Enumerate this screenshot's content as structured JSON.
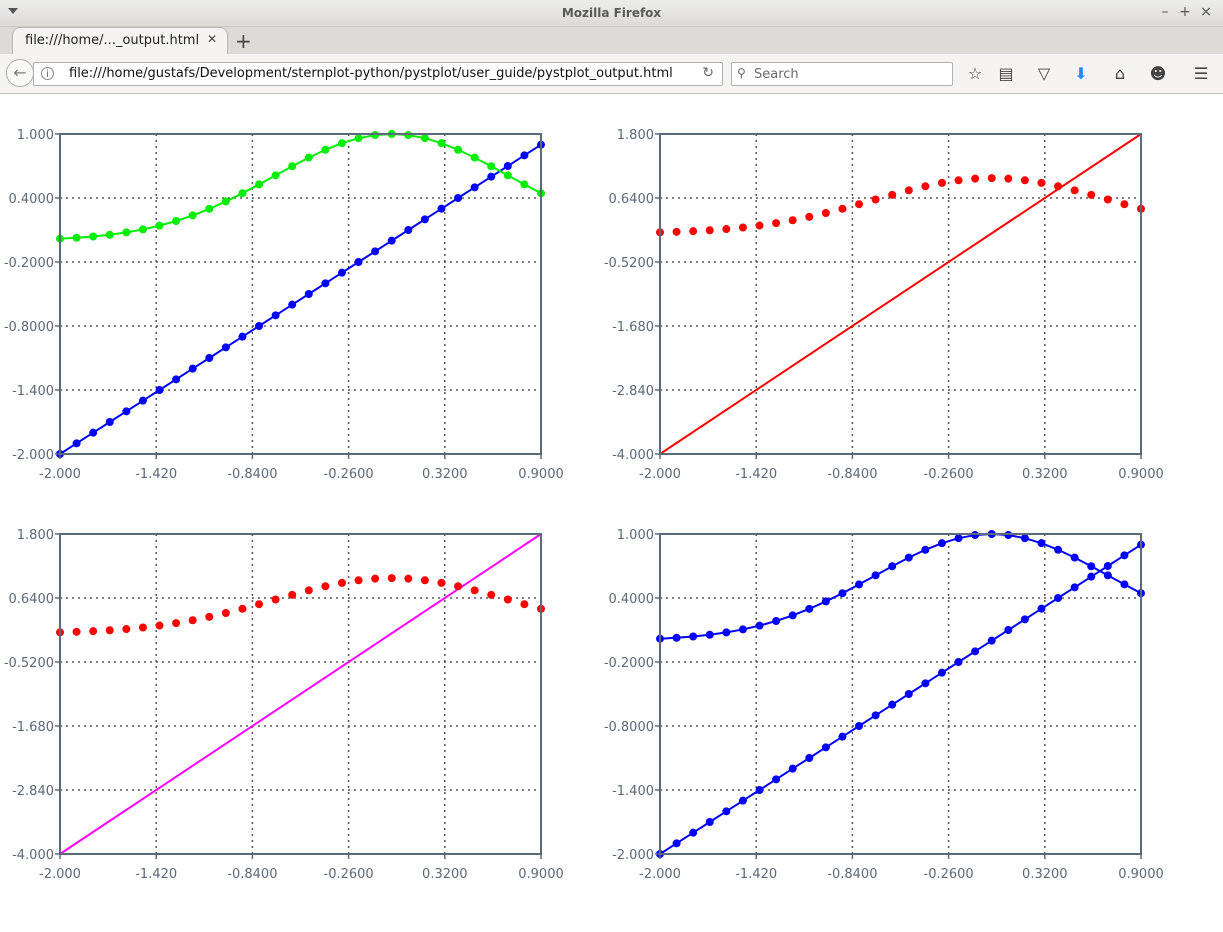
{
  "window": {
    "title": "Mozilla Firefox"
  },
  "tab": {
    "title": "file:///home/..._output.html"
  },
  "navbar": {
    "url": "file:///home/gustafs/Development/sternplot-python/pystplot/user_guide/pystplot_output.html",
    "search_placeholder": "Search"
  },
  "colors": {
    "axis": "#5a6a7a",
    "grid": "#555555",
    "blue": "#0000ff",
    "green": "#00ee00",
    "red": "#ff0000",
    "magenta": "#ff00ff"
  },
  "chart_data": [
    {
      "type": "line",
      "xlim": [
        -2.0,
        0.9
      ],
      "ylim": [
        -2.0,
        1.0
      ],
      "xticks": [
        "-2.000",
        "-1.420",
        "-0.8400",
        "-0.2600",
        "0.3200",
        "0.9000"
      ],
      "yticks": [
        "-2.000",
        "-1.400",
        "-0.8000",
        "-0.2000",
        "0.4000",
        "1.000"
      ],
      "grid": true,
      "series": [
        {
          "function": "y = x",
          "color": "blue",
          "markers": true,
          "line": true,
          "x_start": -2.0,
          "x_end": 0.9,
          "n_points": 30
        },
        {
          "function": "y = exp(-x^2)",
          "color": "green",
          "markers": true,
          "line": true,
          "x_start": -2.0,
          "x_end": 0.9,
          "n_points": 30
        }
      ]
    },
    {
      "type": "line",
      "xlim": [
        -2.0,
        0.9
      ],
      "ylim": [
        -4.0,
        1.8
      ],
      "xticks": [
        "-2.000",
        "-1.420",
        "-0.8400",
        "-0.2600",
        "0.3200",
        "0.9000"
      ],
      "yticks": [
        "-4.000",
        "-2.840",
        "-1.680",
        "-0.5200",
        "0.6400",
        "1.800"
      ],
      "grid": true,
      "series": [
        {
          "function": "y = 2x",
          "color": "red",
          "markers": false,
          "line": true,
          "x_start": -2.0,
          "x_end": 0.9,
          "n_points": 2
        },
        {
          "function": "y = exp(-x^2)",
          "color": "red",
          "markers": true,
          "line": false,
          "x_start": -2.0,
          "x_end": 0.9,
          "n_points": 30
        }
      ]
    },
    {
      "type": "line",
      "xlim": [
        -2.0,
        0.9
      ],
      "ylim": [
        -4.0,
        1.8
      ],
      "xticks": [
        "-2.000",
        "-1.420",
        "-0.8400",
        "-0.2600",
        "0.3200",
        "0.9000"
      ],
      "yticks": [
        "-4.000",
        "-2.840",
        "-1.680",
        "-0.5200",
        "0.6400",
        "1.800"
      ],
      "grid": true,
      "series": [
        {
          "function": "y = 2x",
          "color": "magenta",
          "markers": false,
          "line": true,
          "x_start": -2.0,
          "x_end": 0.9,
          "n_points": 2
        },
        {
          "function": "y = exp(-x^2)",
          "color": "red",
          "markers": true,
          "line": false,
          "x_start": -2.0,
          "x_end": 0.9,
          "n_points": 30
        }
      ]
    },
    {
      "type": "line",
      "xlim": [
        -2.0,
        0.9
      ],
      "ylim": [
        -2.0,
        1.0
      ],
      "xticks": [
        "-2.000",
        "-1.420",
        "-0.8400",
        "-0.2600",
        "0.3200",
        "0.9000"
      ],
      "yticks": [
        "-2.000",
        "-1.400",
        "-0.8000",
        "-0.2000",
        "0.4000",
        "1.000"
      ],
      "grid": true,
      "series": [
        {
          "function": "y = x",
          "color": "blue",
          "markers": true,
          "line": true,
          "x_start": -2.0,
          "x_end": 0.9,
          "n_points": 30
        },
        {
          "function": "y = exp(-x^2)",
          "color": "blue",
          "markers": true,
          "line": true,
          "x_start": -2.0,
          "x_end": 0.9,
          "n_points": 30
        }
      ]
    }
  ]
}
